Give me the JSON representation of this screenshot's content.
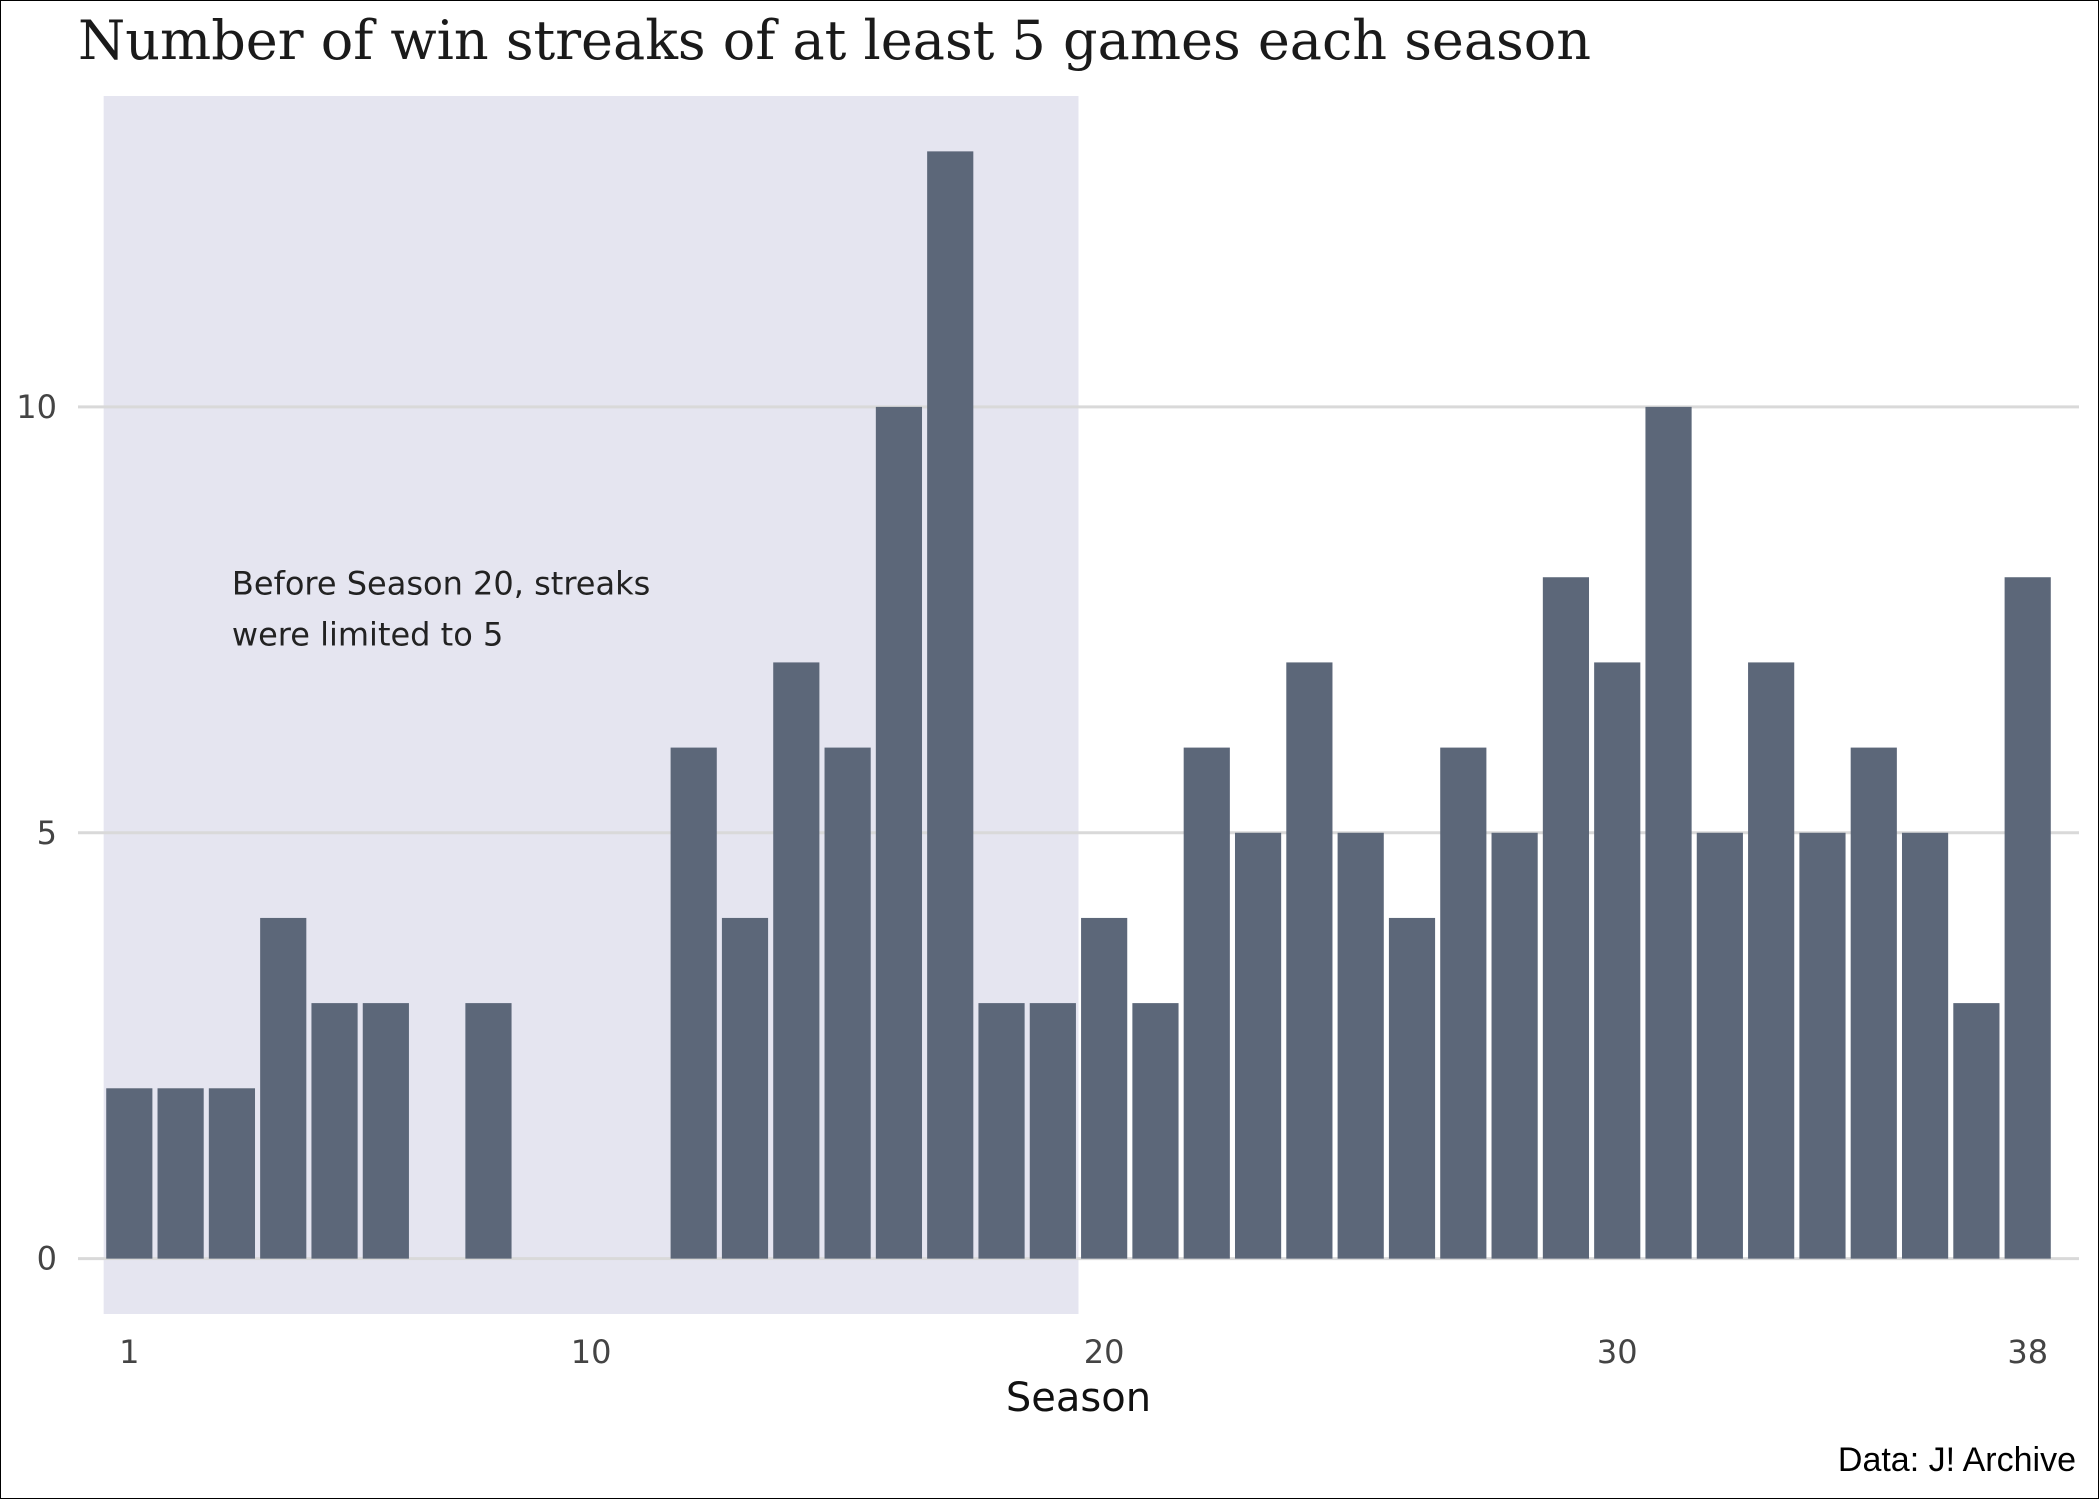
{
  "chart_data": {
    "type": "bar",
    "title": "Number of win streaks of at least 5 games each season",
    "xlabel": "Season",
    "ylabel": "",
    "caption": "Data: J! Archive",
    "x_ticks": [
      1,
      10,
      20,
      30,
      38
    ],
    "y_ticks": [
      0,
      5,
      10
    ],
    "xlim": [
      0,
      39
    ],
    "ylim": [
      -0.65,
      13.65
    ],
    "grid": "horizontal",
    "colors": {
      "bar": "#5c6779",
      "shaded_region": "#e5e5f0",
      "grid": "#d9d9d9"
    },
    "shaded_region": {
      "x_start": 0.5,
      "x_end": 19.5
    },
    "annotation": {
      "lines": [
        "Before Season 20, streaks",
        "were limited to 5"
      ],
      "x": 3.0,
      "y": 7.8
    },
    "categories": [
      1,
      2,
      3,
      4,
      5,
      6,
      7,
      8,
      9,
      10,
      11,
      12,
      13,
      14,
      15,
      16,
      17,
      18,
      19,
      20,
      21,
      22,
      23,
      24,
      25,
      26,
      27,
      28,
      29,
      30,
      31,
      32,
      33,
      34,
      35,
      36,
      37,
      38
    ],
    "values": [
      2,
      2,
      2,
      4,
      3,
      3,
      0,
      3,
      0,
      0,
      0,
      6,
      4,
      7,
      6,
      10,
      13,
      3,
      3,
      4,
      3,
      6,
      5,
      7,
      5,
      4,
      6,
      5,
      8,
      7,
      10,
      5,
      7,
      5,
      6,
      5,
      3,
      8
    ]
  }
}
